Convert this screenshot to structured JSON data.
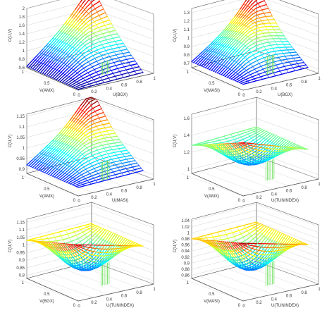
{
  "figure": {
    "panel_count": 6,
    "colormap": [
      "#00008f",
      "#0000ff",
      "#0080ff",
      "#00ffff",
      "#80ff80",
      "#ffff00",
      "#ff8000",
      "#ff0000",
      "#800000"
    ],
    "axis_color": "#555555",
    "grid_color": "#c8c8c8"
  },
  "chart_data": [
    {
      "type": "surface",
      "zlabel": "C(U,V)",
      "xlabel": "U(BGX)",
      "ylabel": "V(AMX)",
      "zticks": [
        "0.6",
        "0.8",
        "1",
        "1.2",
        "1.4",
        "1.6",
        "1.8",
        "2"
      ],
      "zlim": [
        0.6,
        2.0
      ],
      "uticks": [
        "0",
        "0.2",
        "0.4",
        "0.6",
        "0.8",
        "1"
      ],
      "vticks": [
        "0",
        "0.5",
        "1"
      ],
      "shape": "ridge",
      "corner_values": {
        "c00": 0.62,
        "c10": 0.62,
        "c01": 0.63,
        "c11": 1.85
      },
      "peak_value": 2.0,
      "inner_value": 1.05
    },
    {
      "type": "surface",
      "zlabel": "C(U,V)",
      "xlabel": "U(BGX)",
      "ylabel": "V(MASI)",
      "zticks": [
        "0.7",
        "0.8",
        "0.9",
        "1",
        "1.1",
        "1.2",
        "1.3"
      ],
      "zlim": [
        0.65,
        1.35
      ],
      "uticks": [
        "0",
        "0.2",
        "0.4",
        "0.6",
        "0.8",
        "1"
      ],
      "vticks": [
        "0",
        "0.5",
        "1"
      ],
      "shape": "ridge",
      "corner_values": {
        "c00": 0.72,
        "c10": 0.72,
        "c01": 0.72,
        "c11": 1.22
      },
      "peak_value": 1.33,
      "inner_value": 1.02
    },
    {
      "type": "surface",
      "zlabel": "C(U,V)",
      "xlabel": "U(MASI)",
      "ylabel": "V(AMX)",
      "zticks": [
        "0.9",
        "0.95",
        "1",
        "1.05",
        "1.1",
        "1.15"
      ],
      "zlim": [
        0.88,
        1.16
      ],
      "uticks": [
        "0",
        "0.2",
        "0.4",
        "0.6",
        "0.8",
        "1"
      ],
      "vticks": [
        "0",
        "0.5",
        "1"
      ],
      "shape": "ridge",
      "corner_values": {
        "c00": 0.92,
        "c10": 0.92,
        "c01": 0.92,
        "c11": 1.12
      },
      "peak_value": 1.16,
      "inner_value": 1.0
    },
    {
      "type": "surface",
      "zlabel": "C(U,V)",
      "xlabel": "U(TUNINDEX)",
      "ylabel": "V(AMX)",
      "zticks": [
        "1",
        "1.2",
        "1.4",
        "1.6"
      ],
      "zlim": [
        0.95,
        1.65
      ],
      "uticks": [
        "0",
        "0.2",
        "0.4",
        "0.6",
        "0.8",
        "1"
      ],
      "vticks": [
        "0",
        "0.5",
        "1"
      ],
      "shape": "saddle",
      "corner_values": {
        "c00": 1.58,
        "c10": 1.3,
        "c01": 1.28,
        "c11": 1.3
      },
      "peak_value": 1.6,
      "inner_value": 1.05
    },
    {
      "type": "surface",
      "zlabel": "C(U,V)",
      "xlabel": "U(TUNINDEX)",
      "ylabel": "V(BGX)",
      "zticks": [
        "0.8",
        "0.85",
        "0.9",
        "0.95",
        "1",
        "1.05",
        "1.1",
        "1.15"
      ],
      "zlim": [
        0.78,
        1.17
      ],
      "uticks": [
        "0",
        "0.2",
        "0.4",
        "0.6",
        "0.8",
        "1"
      ],
      "vticks": [
        "0",
        "0.5",
        "1"
      ],
      "shape": "saddle",
      "corner_values": {
        "c00": 1.15,
        "c10": 1.03,
        "c01": 1.03,
        "c11": 1.03
      },
      "peak_value": 1.15,
      "inner_value": 0.82
    },
    {
      "type": "surface",
      "zlabel": "C(U,V)",
      "xlabel": "U(TUNINDEX)",
      "ylabel": "V(MASI)",
      "zticks": [
        "0.86",
        "0.88",
        "0.9",
        "0.92",
        "0.94",
        "0.96",
        "0.98",
        "1",
        "1.02",
        "1.04"
      ],
      "zlim": [
        0.85,
        1.045
      ],
      "uticks": [
        "0",
        "0.2",
        "0.4",
        "0.6",
        "0.8",
        "1"
      ],
      "vticks": [
        "0",
        "0.5",
        "1"
      ],
      "shape": "saddle",
      "corner_values": {
        "c00": 1.04,
        "c10": 0.98,
        "c01": 0.98,
        "c11": 0.98
      },
      "peak_value": 1.04,
      "inner_value": 0.87
    }
  ]
}
